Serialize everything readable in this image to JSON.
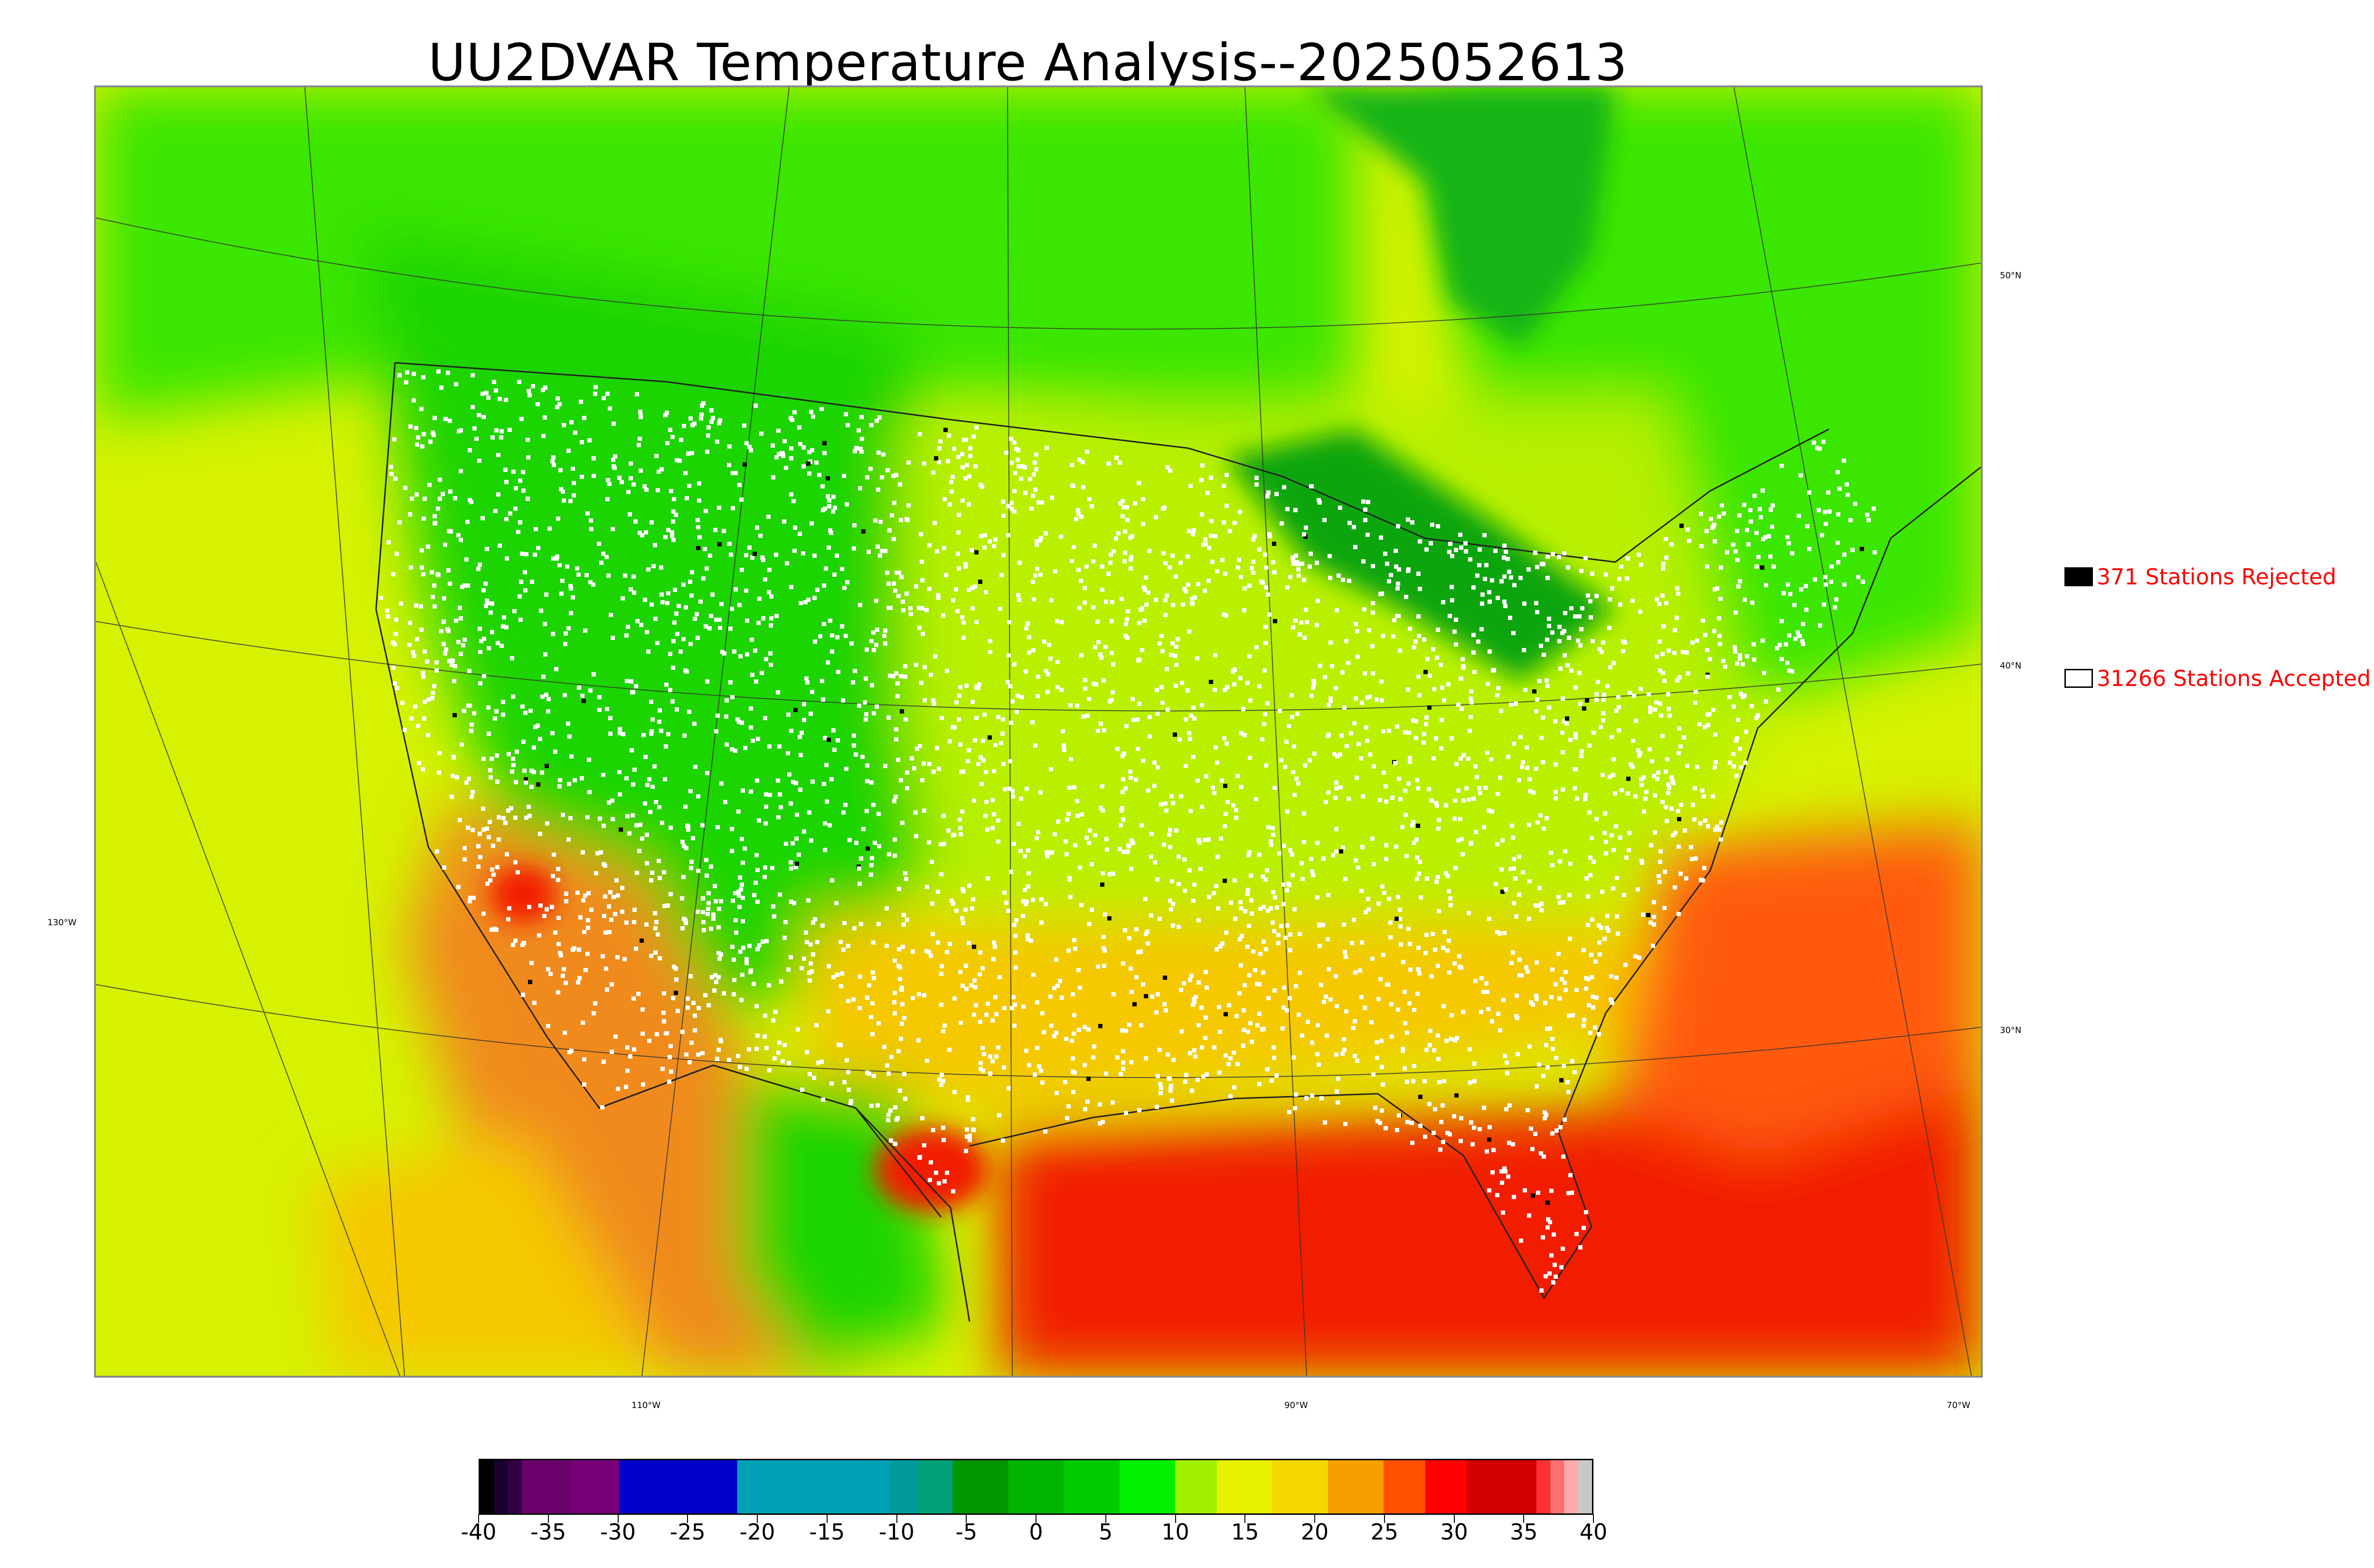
{
  "title": "UU2DVAR Temperature Analysis--2025052613",
  "map": {
    "longitude_labels": [
      "130°W",
      "110°W",
      "90°W",
      "70°W"
    ],
    "latitude_labels": [
      "50°N",
      "40°N",
      "30°N"
    ],
    "colors": {
      "ocean_gulf": "#f21d00",
      "ocean_atlantic_south": "#ff5a10",
      "pacific": "#d6f200",
      "canada": "#3ae600",
      "rockies": "#1fd400",
      "plains": "#b8f000",
      "south": "#f5c800",
      "desert": "#f08a1a",
      "hudson": "#14b414",
      "lakes": "#0aa50a",
      "accepted_station": "#ffffff",
      "rejected_station": "#000000"
    }
  },
  "legend": {
    "rejected": {
      "label": "371 Stations Rejected",
      "swatch": "#000000"
    },
    "accepted": {
      "label": "31266 Stations Accepted",
      "swatch": "#ffffff"
    }
  },
  "colorbar": {
    "tick_labels": [
      "-40",
      "-35",
      "-30",
      "-25",
      "-20",
      "-15",
      "-10",
      "-5",
      "0",
      "5",
      "10",
      "15",
      "20",
      "25",
      "30",
      "35",
      "40"
    ],
    "min": -40,
    "max": 40,
    "segments": [
      {
        "from": -40,
        "to": -39,
        "color": "#000000"
      },
      {
        "from": -39,
        "to": -38,
        "color": "#1a0033"
      },
      {
        "from": -38,
        "to": -37,
        "color": "#330044"
      },
      {
        "from": -37,
        "to": -33.5,
        "color": "#6a006a"
      },
      {
        "from": -33.5,
        "to": -30,
        "color": "#780078"
      },
      {
        "from": -30,
        "to": -21.5,
        "color": "#0000cc"
      },
      {
        "from": -21.5,
        "to": -10.5,
        "color": "#00a0b4"
      },
      {
        "from": -10.5,
        "to": -8.5,
        "color": "#009a9a"
      },
      {
        "from": -8.5,
        "to": -6,
        "color": "#00a078"
      },
      {
        "from": -6,
        "to": -2,
        "color": "#009600"
      },
      {
        "from": -2,
        "to": 2,
        "color": "#00b400"
      },
      {
        "from": 2,
        "to": 6,
        "color": "#00cc00"
      },
      {
        "from": 6,
        "to": 10,
        "color": "#00f000"
      },
      {
        "from": 10,
        "to": 13,
        "color": "#a0f000"
      },
      {
        "from": 13,
        "to": 17,
        "color": "#e6f000"
      },
      {
        "from": 17,
        "to": 21,
        "color": "#f5d700"
      },
      {
        "from": 21,
        "to": 25,
        "color": "#f5a000"
      },
      {
        "from": 25,
        "to": 28,
        "color": "#ff5000"
      },
      {
        "from": 28,
        "to": 31,
        "color": "#ff0000"
      },
      {
        "from": 31,
        "to": 36,
        "color": "#d20000"
      },
      {
        "from": 36,
        "to": 37,
        "color": "#ff3030"
      },
      {
        "from": 37,
        "to": 38,
        "color": "#ff7070"
      },
      {
        "from": 38,
        "to": 39,
        "color": "#ffaaaa"
      },
      {
        "from": 39,
        "to": 40,
        "color": "#c8c8c8"
      }
    ]
  }
}
